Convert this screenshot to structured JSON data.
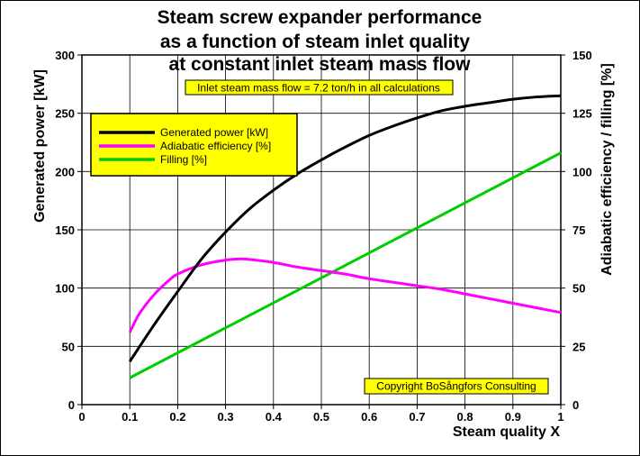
{
  "chart_data": {
    "type": "line",
    "title_lines": [
      "Steam screw expander performance",
      "as a function of steam inlet quality",
      "at constant inlet steam mass flow"
    ],
    "xlabel": "Steam quality X",
    "ylabel_left": "Generated power [kW]",
    "ylabel_right": "Adiabatic efficiency / filling [%]",
    "xlim": [
      0,
      1
    ],
    "ylim_left": [
      0,
      300
    ],
    "ylim_right": [
      0,
      150
    ],
    "x_ticks": [
      "0",
      "0.1",
      "0.2",
      "0.3",
      "0.4",
      "0.5",
      "0.6",
      "0.7",
      "0.8",
      "0.9",
      "1"
    ],
    "y_ticks_left": [
      "0",
      "50",
      "100",
      "150",
      "200",
      "250",
      "300"
    ],
    "y_ticks_right": [
      "0",
      "25",
      "50",
      "75",
      "100",
      "125",
      "150"
    ],
    "grid": true,
    "background_color": "#ffffff",
    "info_box": "Inlet steam mass flow = 7.2 ton/h in all calculations",
    "info_box_color": "#ffff00",
    "copyright": "Copyright BoSångfors Consulting",
    "legend_position": "upper-left",
    "legend_color": "#ffff00",
    "series": [
      {
        "name": "Generated power [kW]",
        "axis": "left",
        "color": "#000000",
        "x": [
          0.1,
          0.15,
          0.2,
          0.25,
          0.3,
          0.35,
          0.4,
          0.45,
          0.5,
          0.55,
          0.6,
          0.65,
          0.7,
          0.75,
          0.8,
          0.85,
          0.9,
          0.95,
          1.0
        ],
        "y": [
          37,
          68,
          97,
          125,
          148,
          168,
          184,
          198,
          210,
          221,
          231,
          239,
          246,
          252,
          256,
          259,
          262,
          264,
          265
        ]
      },
      {
        "name": "Adiabatic efficiency [%]",
        "axis": "right",
        "color": "#ff00ff",
        "x": [
          0.1,
          0.12,
          0.15,
          0.18,
          0.2,
          0.25,
          0.3,
          0.33,
          0.35,
          0.4,
          0.45,
          0.5,
          0.55,
          0.6,
          0.65,
          0.7,
          0.75,
          0.8,
          0.85,
          0.9,
          0.95,
          1.0
        ],
        "y": [
          31,
          39,
          47,
          53,
          56,
          60,
          62,
          62.5,
          62.3,
          61,
          59,
          57.5,
          56,
          54,
          52.5,
          51,
          49.5,
          47.5,
          45.5,
          43.5,
          41.5,
          39.5
        ]
      },
      {
        "name": "Filling [%]",
        "axis": "right",
        "color": "#00cc00",
        "x": [
          0.1,
          1.0
        ],
        "y": [
          11.5,
          108
        ]
      }
    ]
  }
}
